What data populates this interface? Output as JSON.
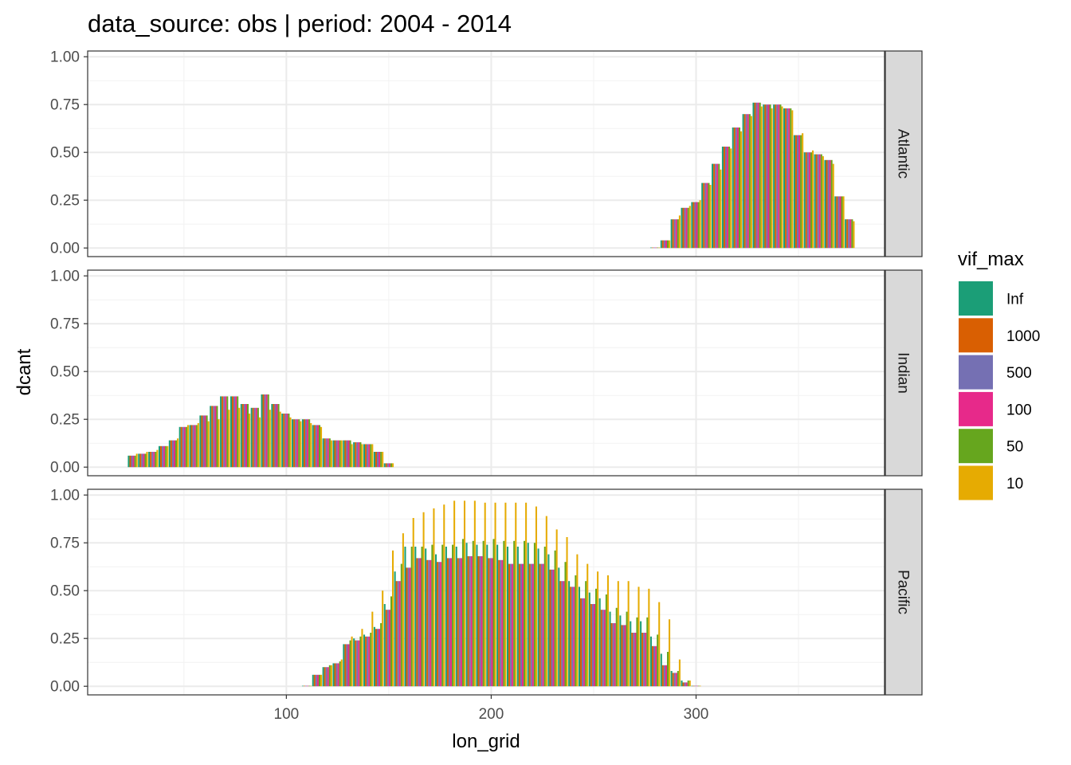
{
  "chart_data": {
    "type": "bar",
    "title": "data_source: obs | period: 2004 - 2014",
    "xlabel": "lon_grid",
    "ylabel": "dcant",
    "xlim": [
      3,
      392
    ],
    "ylim": [
      -0.045,
      1.03
    ],
    "x_ticks": [
      100,
      200,
      300
    ],
    "y_ticks": [
      0,
      0.25,
      0.5,
      0.75,
      1.0
    ],
    "y_tick_labels": [
      "0.00",
      "0.25",
      "0.50",
      "0.75",
      "1.00"
    ],
    "grid": true,
    "legend": {
      "title": "vif_max",
      "position": "right",
      "entries": [
        "Inf",
        "1000",
        "500",
        "100",
        "50",
        "10"
      ]
    },
    "series_colors": {
      "Inf": "#1B9E77",
      "1000": "#D95F02",
      "500": "#7570B3",
      "100": "#E7298A",
      "50": "#66A61E",
      "10": "#E6AB02"
    },
    "panels": [
      {
        "name": "Atlantic",
        "lon": [
          280,
          285,
          290,
          295,
          300,
          305,
          310,
          315,
          320,
          325,
          330,
          335,
          340,
          345,
          350,
          355,
          360,
          365,
          370,
          375
        ],
        "base": [
          0.0,
          0.04,
          0.15,
          0.21,
          0.24,
          0.34,
          0.44,
          0.53,
          0.63,
          0.7,
          0.76,
          0.75,
          0.75,
          0.73,
          0.59,
          0.5,
          0.49,
          0.46,
          0.27,
          0.15
        ],
        "vif10": [
          0.0,
          0.04,
          0.17,
          0.22,
          0.25,
          0.33,
          0.41,
          0.52,
          0.61,
          0.69,
          0.74,
          0.73,
          0.74,
          0.72,
          0.6,
          0.51,
          0.48,
          0.44,
          0.27,
          0.14
        ]
      },
      {
        "name": "Indian",
        "lon": [
          25,
          30,
          35,
          40,
          45,
          50,
          55,
          60,
          65,
          70,
          75,
          80,
          85,
          90,
          95,
          100,
          105,
          110,
          115,
          120,
          125,
          130,
          135,
          140,
          145,
          150
        ],
        "base": [
          0.06,
          0.07,
          0.08,
          0.11,
          0.14,
          0.21,
          0.22,
          0.27,
          0.32,
          0.37,
          0.37,
          0.33,
          0.31,
          0.38,
          0.33,
          0.28,
          0.25,
          0.25,
          0.22,
          0.15,
          0.14,
          0.14,
          0.13,
          0.12,
          0.08,
          0.02
        ],
        "vif10": [
          0.07,
          0.08,
          0.09,
          0.11,
          0.15,
          0.22,
          0.23,
          0.24,
          0.25,
          0.3,
          0.31,
          0.28,
          0.26,
          0.3,
          0.29,
          0.26,
          0.24,
          0.23,
          0.21,
          0.14,
          0.14,
          0.12,
          0.12,
          0.12,
          0.08,
          0.02
        ]
      },
      {
        "name": "Pacific",
        "lon": [
          110,
          115,
          120,
          125,
          130,
          135,
          140,
          145,
          150,
          155,
          160,
          165,
          170,
          175,
          180,
          185,
          190,
          195,
          200,
          205,
          210,
          215,
          220,
          225,
          230,
          235,
          240,
          245,
          250,
          255,
          260,
          265,
          270,
          275,
          280,
          285,
          290,
          295,
          300
        ],
        "base": [
          0.0,
          0.06,
          0.1,
          0.12,
          0.22,
          0.24,
          0.26,
          0.3,
          0.4,
          0.55,
          0.62,
          0.67,
          0.66,
          0.65,
          0.67,
          0.67,
          0.68,
          0.68,
          0.67,
          0.66,
          0.64,
          0.64,
          0.64,
          0.64,
          0.61,
          0.55,
          0.52,
          0.46,
          0.43,
          0.4,
          0.33,
          0.32,
          0.28,
          0.28,
          0.21,
          0.11,
          0.07,
          0.02,
          0.0
        ],
        "inf": [
          0.0,
          0.06,
          0.1,
          0.12,
          0.22,
          0.25,
          0.27,
          0.31,
          0.43,
          0.6,
          0.73,
          0.73,
          0.72,
          0.69,
          0.73,
          0.73,
          0.75,
          0.74,
          0.74,
          0.74,
          0.73,
          0.73,
          0.75,
          0.72,
          0.69,
          0.62,
          0.55,
          0.52,
          0.49,
          0.46,
          0.39,
          0.37,
          0.34,
          0.34,
          0.26,
          0.17,
          0.08,
          0.03,
          0.0
        ],
        "vif50": [
          0.0,
          0.06,
          0.11,
          0.13,
          0.24,
          0.26,
          0.28,
          0.33,
          0.47,
          0.64,
          0.73,
          0.73,
          0.74,
          0.74,
          0.74,
          0.77,
          0.76,
          0.76,
          0.77,
          0.76,
          0.76,
          0.76,
          0.75,
          0.73,
          0.71,
          0.65,
          0.58,
          0.55,
          0.51,
          0.48,
          0.41,
          0.39,
          0.36,
          0.36,
          0.27,
          0.18,
          0.08,
          0.03,
          0.0
        ],
        "vif10": [
          0.0,
          0.06,
          0.11,
          0.14,
          0.26,
          0.3,
          0.39,
          0.5,
          0.71,
          0.8,
          0.88,
          0.91,
          0.93,
          0.95,
          0.97,
          0.97,
          0.97,
          0.96,
          0.96,
          0.96,
          0.96,
          0.96,
          0.94,
          0.89,
          0.82,
          0.78,
          0.69,
          0.64,
          0.6,
          0.58,
          0.55,
          0.55,
          0.52,
          0.51,
          0.44,
          0.35,
          0.14,
          0.03,
          0.0
        ]
      }
    ]
  }
}
